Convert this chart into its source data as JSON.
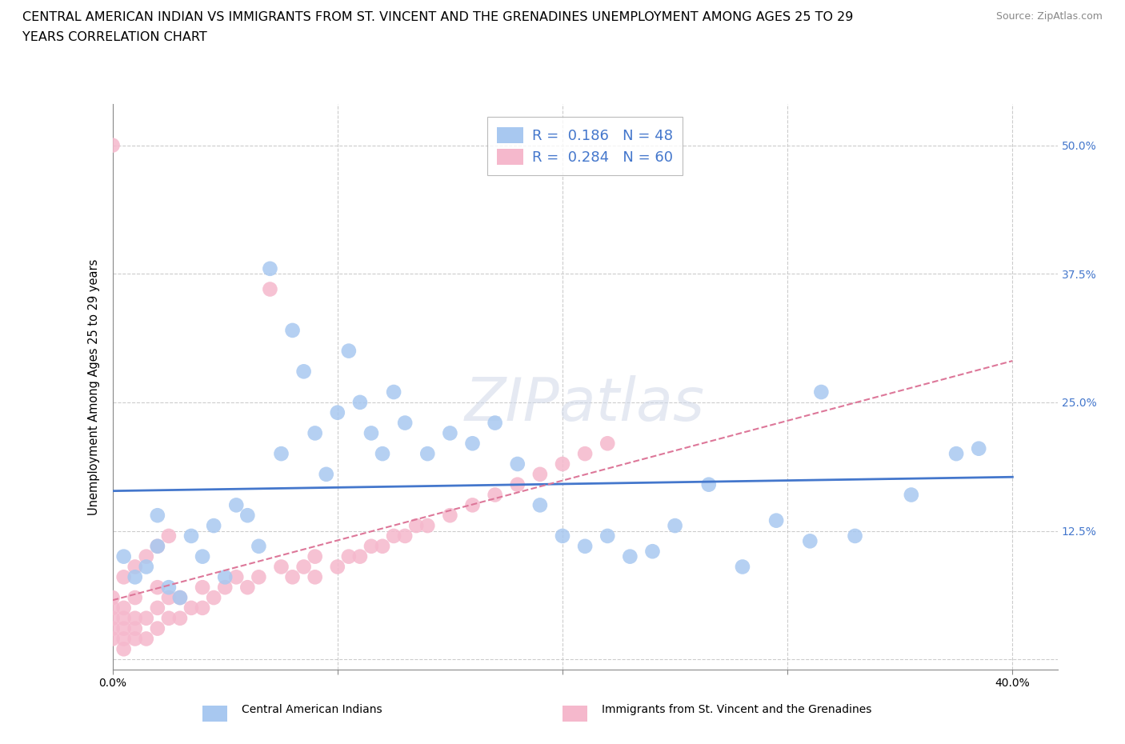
{
  "title_line1": "CENTRAL AMERICAN INDIAN VS IMMIGRANTS FROM ST. VINCENT AND THE GRENADINES UNEMPLOYMENT AMONG AGES 25 TO 29",
  "title_line2": "YEARS CORRELATION CHART",
  "source": "Source: ZipAtlas.com",
  "ylabel": "Unemployment Among Ages 25 to 29 years",
  "xlim": [
    0.0,
    0.42
  ],
  "ylim": [
    -0.01,
    0.54
  ],
  "x_ticks": [
    0.0,
    0.1,
    0.2,
    0.3,
    0.4
  ],
  "y_ticks": [
    0.0,
    0.125,
    0.25,
    0.375,
    0.5
  ],
  "blue_R": 0.186,
  "blue_N": 48,
  "pink_R": 0.284,
  "pink_N": 60,
  "blue_color": "#a8c8f0",
  "pink_color": "#f5b8cc",
  "blue_line_color": "#4477cc",
  "pink_line_color": "#dd7799",
  "grid_color": "#cccccc",
  "legend_label_blue": "Central American Indians",
  "legend_label_pink": "Immigrants from St. Vincent and the Grenadines",
  "blue_x": [
    0.005,
    0.01,
    0.015,
    0.02,
    0.02,
    0.025,
    0.03,
    0.035,
    0.04,
    0.045,
    0.05,
    0.055,
    0.06,
    0.065,
    0.07,
    0.075,
    0.08,
    0.085,
    0.09,
    0.095,
    0.1,
    0.105,
    0.11,
    0.115,
    0.12,
    0.125,
    0.13,
    0.14,
    0.15,
    0.16,
    0.17,
    0.18,
    0.19,
    0.2,
    0.21,
    0.22,
    0.23,
    0.24,
    0.25,
    0.265,
    0.28,
    0.295,
    0.31,
    0.315,
    0.33,
    0.355,
    0.375,
    0.385
  ],
  "blue_y": [
    0.1,
    0.08,
    0.09,
    0.11,
    0.14,
    0.07,
    0.06,
    0.12,
    0.1,
    0.13,
    0.08,
    0.15,
    0.14,
    0.11,
    0.38,
    0.2,
    0.32,
    0.28,
    0.22,
    0.18,
    0.24,
    0.3,
    0.25,
    0.22,
    0.2,
    0.26,
    0.23,
    0.2,
    0.22,
    0.21,
    0.23,
    0.19,
    0.15,
    0.12,
    0.11,
    0.12,
    0.1,
    0.105,
    0.13,
    0.17,
    0.09,
    0.135,
    0.115,
    0.26,
    0.12,
    0.16,
    0.2,
    0.205
  ],
  "pink_x": [
    0.0,
    0.0,
    0.0,
    0.0,
    0.0,
    0.0,
    0.005,
    0.005,
    0.005,
    0.005,
    0.005,
    0.01,
    0.01,
    0.01,
    0.01,
    0.015,
    0.015,
    0.02,
    0.02,
    0.02,
    0.025,
    0.025,
    0.03,
    0.03,
    0.035,
    0.04,
    0.04,
    0.045,
    0.05,
    0.055,
    0.06,
    0.065,
    0.07,
    0.075,
    0.08,
    0.085,
    0.09,
    0.09,
    0.1,
    0.105,
    0.11,
    0.115,
    0.12,
    0.125,
    0.13,
    0.135,
    0.14,
    0.15,
    0.16,
    0.17,
    0.18,
    0.19,
    0.2,
    0.21,
    0.22,
    0.005,
    0.01,
    0.015,
    0.02,
    0.025
  ],
  "pink_y": [
    0.02,
    0.03,
    0.04,
    0.05,
    0.06,
    0.5,
    0.01,
    0.02,
    0.03,
    0.04,
    0.05,
    0.02,
    0.03,
    0.04,
    0.06,
    0.02,
    0.04,
    0.03,
    0.05,
    0.07,
    0.04,
    0.06,
    0.04,
    0.06,
    0.05,
    0.05,
    0.07,
    0.06,
    0.07,
    0.08,
    0.07,
    0.08,
    0.36,
    0.09,
    0.08,
    0.09,
    0.08,
    0.1,
    0.09,
    0.1,
    0.1,
    0.11,
    0.11,
    0.12,
    0.12,
    0.13,
    0.13,
    0.14,
    0.15,
    0.16,
    0.17,
    0.18,
    0.19,
    0.2,
    0.21,
    0.08,
    0.09,
    0.1,
    0.11,
    0.12
  ]
}
